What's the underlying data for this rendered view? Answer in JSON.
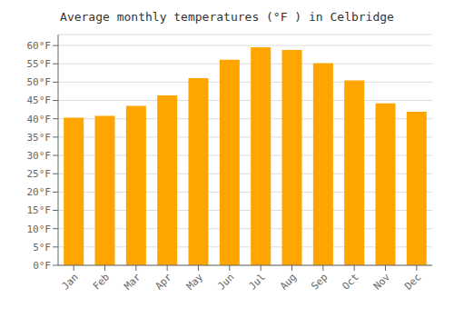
{
  "chart_data": {
    "type": "bar",
    "title": "Average monthly temperatures (°F ) in Celbridge",
    "categories": [
      "Jan",
      "Feb",
      "Mar",
      "Apr",
      "May",
      "Jun",
      "Jul",
      "Aug",
      "Sep",
      "Oct",
      "Nov",
      "Dec"
    ],
    "values": [
      40.3,
      40.8,
      43.5,
      46.4,
      51.1,
      56.1,
      59.5,
      58.8,
      55.2,
      50.5,
      44.2,
      41.9
    ],
    "color": "#FFA500",
    "ylim": [
      0,
      63
    ],
    "yticks": [
      {
        "value": 0,
        "label": "0°F"
      },
      {
        "value": 5,
        "label": "5°F"
      },
      {
        "value": 10,
        "label": "10°F"
      },
      {
        "value": 15,
        "label": "15°F"
      },
      {
        "value": 20,
        "label": "20°F"
      },
      {
        "value": 25,
        "label": "25°F"
      },
      {
        "value": 30,
        "label": "30°F"
      },
      {
        "value": 35,
        "label": "35°F"
      },
      {
        "value": 40,
        "label": "40°F"
      },
      {
        "value": 45,
        "label": "45°F"
      },
      {
        "value": 50,
        "label": "50°F"
      },
      {
        "value": 55,
        "label": "55°F"
      },
      {
        "value": 60,
        "label": "60°F"
      }
    ],
    "grid": true
  }
}
